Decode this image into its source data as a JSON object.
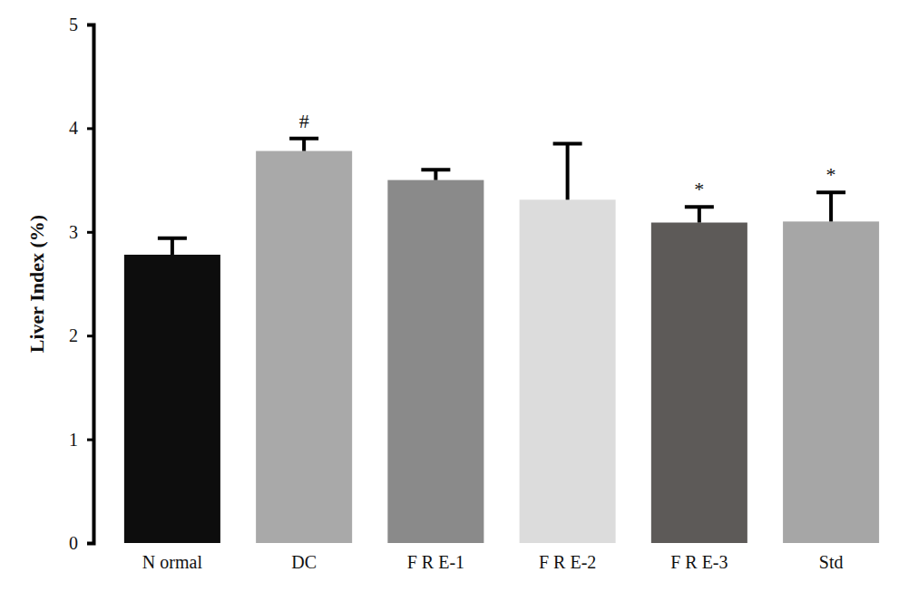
{
  "chart_data": {
    "type": "bar",
    "y_label": "Liver Index (%)",
    "categories": [
      "N ormal",
      "DC",
      "F R E-1",
      "F R E-2",
      "F R E-3",
      "Std"
    ],
    "values": [
      2.78,
      3.78,
      3.5,
      3.31,
      3.09,
      3.1
    ],
    "errors": [
      0.16,
      0.12,
      0.1,
      0.54,
      0.15,
      0.28
    ],
    "significance": [
      null,
      "#",
      null,
      null,
      "*",
      "*"
    ],
    "colors": [
      "#0d0d0d",
      "#a9a9a9",
      "#8a8a8a",
      "#dcdcdc",
      "#5d5a58",
      "#a6a6a6"
    ],
    "ylim": [
      0,
      5
    ],
    "yticks": [
      0,
      1,
      2,
      3,
      4,
      5
    ],
    "grid": false
  }
}
